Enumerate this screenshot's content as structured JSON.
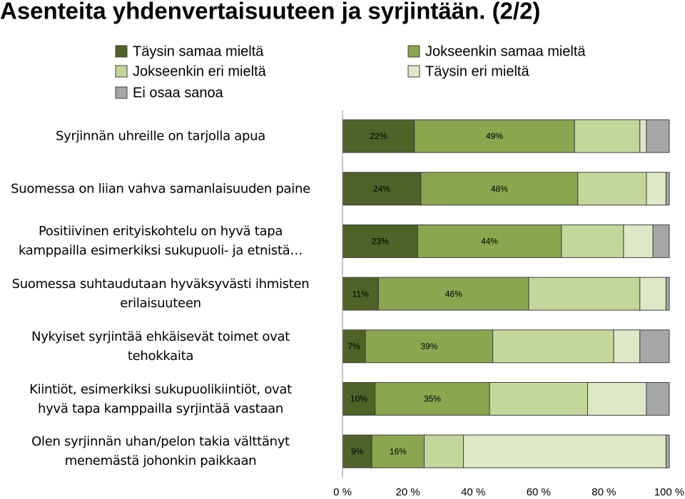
{
  "chart_data": {
    "type": "stacked-bar-horizontal",
    "title": "Asenteita yhdenvertaisuuteen ja syrjintään. (2/2)",
    "categories": [
      "Syrjinnän uhreille on tarjolla apua",
      "Suomessa on liian vahva samanlaisuuden paine",
      "Positiivinen erityiskohtelu on hyvä tapa\nkamppailla esimerkiksi sukupuoli- ja etnistä…",
      "Suomessa suhtaudutaan hyväksyvästi ihmisten\nerilaisuuteen",
      "Nykyiset syrjintää ehkäisevät toimet ovat\ntehokkaita",
      "Kiintiöt, esimerkiksi sukupuolikiintiöt, ovat\nhyvä tapa kamppailla syrjintää vastaan",
      "Olen syrjinnän uhan/pelon takia välttänyt\nmenemästä johonkin paikkaan"
    ],
    "series": [
      {
        "name": "Täysin samaa mieltä",
        "color": "#4f6228",
        "values": [
          22,
          24,
          23,
          11,
          7,
          10,
          9
        ],
        "value_labels": [
          "22%",
          "24%",
          "23%",
          "11%",
          "7%",
          "10%",
          "9%"
        ]
      },
      {
        "name": "Jokseenkin samaa mieltä",
        "color": "#8aa64f",
        "values": [
          49,
          48,
          44,
          46,
          39,
          35,
          16
        ],
        "value_labels": [
          "49%",
          "48%",
          "44%",
          "46%",
          "39%",
          "35%",
          "16%"
        ]
      },
      {
        "name": "Jokseenkin eri mieltä",
        "color": "#c4d79b",
        "values": [
          20,
          21,
          19,
          34,
          37,
          30,
          12
        ]
      },
      {
        "name": "Täysin eri mieltä",
        "color": "#dde8c6",
        "values": [
          2,
          6,
          9,
          8,
          8,
          18,
          62
        ]
      },
      {
        "name": "Ei osaa sanoa",
        "color": "#a6a6a6",
        "values": [
          7,
          1,
          5,
          1,
          9,
          7,
          1
        ]
      }
    ],
    "xlim": [
      0,
      100
    ],
    "xticks": [
      {
        "value": 0,
        "label": "0 %"
      },
      {
        "value": 20,
        "label": "20 %"
      },
      {
        "value": 40,
        "label": "40 %"
      },
      {
        "value": 60,
        "label": "60 %"
      },
      {
        "value": 80,
        "label": "80 %"
      },
      {
        "value": 100,
        "label": "100 %"
      }
    ]
  }
}
